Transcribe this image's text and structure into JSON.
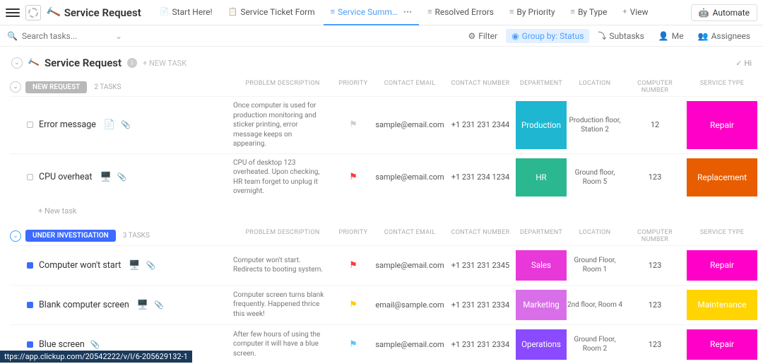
{
  "title": "Service Request",
  "tabs": [
    {
      "label": "Start Here!",
      "icon": "📄"
    },
    {
      "label": "Service Ticket Form",
      "icon": "📋"
    },
    {
      "label": "Service Summ…",
      "icon": "≡",
      "active": true,
      "extra": "•••"
    },
    {
      "label": "Resolved Errors",
      "icon": "≡"
    },
    {
      "label": "By Priority",
      "icon": "≡"
    },
    {
      "label": "By Type",
      "icon": "≡"
    },
    {
      "label": "View",
      "icon": "+"
    }
  ],
  "automate": "Automate",
  "search_placeholder": "Search tasks...",
  "toolbar": {
    "filter": "Filter",
    "group": "Group by: Status",
    "subtasks": "Subtasks",
    "me": "Me",
    "assignees": "Assignees"
  },
  "section": {
    "title": "Service Request",
    "new": "+ NEW TASK",
    "hide": "Hi"
  },
  "columns": {
    "desc": "PROBLEM DESCRIPTION",
    "prio": "PRIORITY",
    "email": "CONTACT EMAIL",
    "num": "CONTACT NUMBER",
    "dept": "DEPARTMENT",
    "loc": "LOCATION",
    "comp": "COMPUTER NUMBER",
    "type": "SERVICE TYPE"
  },
  "groups": [
    {
      "status": "NEW REQUEST",
      "status_bg": "#b8b8b8",
      "count": "2 TASKS",
      "open": false,
      "rows": [
        {
          "sq": "#b8b8b8",
          "filled": false,
          "name": "Error message",
          "emoji": "📄",
          "clip": true,
          "desc": "Once computer is used for production monitoring and sticker printing, error message keeps on appearing.",
          "flag": "#cfcfcf",
          "email": "sample@email.com",
          "num": "+1 231 231 2344",
          "dept": "Production",
          "dept_bg": "#1fb6d1",
          "loc": "Production floor, Station 2",
          "comp": "12",
          "type": "Repair",
          "type_bg": "#ff00c8"
        },
        {
          "sq": "#b8b8b8",
          "filled": false,
          "name": "CPU overheat",
          "emoji": "🖥️",
          "clip": true,
          "desc": "CPU of desktop 123 overheated. Upon checking, HR team forget to unplug it overnight.",
          "flag": "#ff3b3b",
          "email": "sample@email.com",
          "num": "+1 231 234 1234",
          "dept": "HR",
          "dept_bg": "#2bb78f",
          "loc": "Ground floor, Room 5",
          "comp": "123",
          "type": "Replacement",
          "type_bg": "#e85d00"
        }
      ],
      "add": "+ New task"
    },
    {
      "status": "UNDER INVESTIGATION",
      "status_bg": "#3b6bff",
      "count": "3 TASKS",
      "open": true,
      "rows": [
        {
          "sq": "#3b6bff",
          "filled": true,
          "name": "Computer won't start",
          "emoji": "🖥️",
          "clip": true,
          "desc": "Computer won't start. Redirects to booting system.",
          "flag": "#ff3b3b",
          "email": "sample@email.com",
          "num": "+1 231 231 2345",
          "dept": "Sales",
          "dept_bg": "#e838d9",
          "loc": "Ground Floor, Room 1",
          "comp": "123",
          "type": "Repair",
          "type_bg": "#ff00c8"
        },
        {
          "sq": "#3b6bff",
          "filled": true,
          "name": "Blank computer screen",
          "emoji": "🖥️",
          "clip": true,
          "desc": "Computer screen turns blank frequently. Happened thrice this week!",
          "flag": "#ffcc00",
          "email": "email@sample.com",
          "num": "+1 231 231 2334",
          "dept": "Marketing",
          "dept_bg": "#d96fe8",
          "loc": "2nd floor, Room 4",
          "comp": "123",
          "type": "Maintenance",
          "type_bg": "#ffd400"
        },
        {
          "sq": "#3b6bff",
          "filled": true,
          "name": "Blue screen",
          "emoji": "",
          "clip": true,
          "desc": "After few hours of using the computer it will have a blue screen.",
          "flag": "#5bc6ff",
          "email": "sample@email.com",
          "num": "+1 231 231 2334",
          "dept": "Operations",
          "dept_bg": "#8a4aff",
          "loc": "Ground Floor, Room 2",
          "comp": "123",
          "type": "Repair",
          "type_bg": "#ff00c8"
        }
      ]
    }
  ],
  "url": "ttps://app.clickup.com/20542222/v/l/6-205629132-1"
}
